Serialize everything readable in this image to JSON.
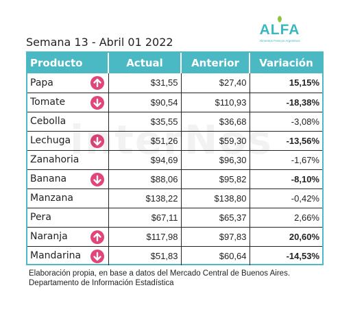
{
  "logo": {
    "word": "ALFA",
    "subtitle": "Alimentos Frescos Argentinos"
  },
  "title": "Semana 13 - Abril 01 2022",
  "watermark": "interNos",
  "table": {
    "headers": [
      "Producto",
      "Actual",
      "Anterior",
      "Variación"
    ],
    "rows": [
      {
        "product": "Papa",
        "actual": "$31,55",
        "previous": "$27,40",
        "variation": "15,15%",
        "bold": true,
        "arrow": "up"
      },
      {
        "product": "Tomate",
        "actual": "$90,54",
        "previous": "$110,93",
        "variation": "-18,38%",
        "bold": true,
        "arrow": "down"
      },
      {
        "product": "Cebolla",
        "actual": "$35,55",
        "previous": "$36,68",
        "variation": "-3,08%",
        "bold": false,
        "arrow": ""
      },
      {
        "product": "Lechuga",
        "actual": "$51,26",
        "previous": "$59,30",
        "variation": "-13,56%",
        "bold": true,
        "arrow": "down"
      },
      {
        "product": "Zanahoria",
        "actual": "$94,69",
        "previous": "$96,30",
        "variation": "-1,67%",
        "bold": false,
        "arrow": ""
      },
      {
        "product": "Banana",
        "actual": "$88,06",
        "previous": "$95,82",
        "variation": "-8,10%",
        "bold": true,
        "arrow": "down"
      },
      {
        "product": "Manzana",
        "actual": "$138,22",
        "previous": "$138,80",
        "variation": "-0,42%",
        "bold": false,
        "arrow": ""
      },
      {
        "product": "Pera",
        "actual": "$67,11",
        "previous": "$65,37",
        "variation": "2,66%",
        "bold": false,
        "arrow": ""
      },
      {
        "product": "Naranja",
        "actual": "$117,98",
        "previous": "$97,83",
        "variation": "20,60%",
        "bold": true,
        "arrow": "up"
      },
      {
        "product": "Mandarina",
        "actual": "$51,83",
        "previous": "$60,64",
        "variation": "-14,53%",
        "bold": true,
        "arrow": "down"
      }
    ]
  },
  "footer": {
    "line1": "Elaboración propia, en base a datos del Mercado Central de Buenos Aires.",
    "line2": "Departamento de Información Estadística"
  },
  "colors": {
    "accent": "#4ab9c4",
    "arrow": "#e0457b",
    "logo": "#3bb8bf"
  }
}
